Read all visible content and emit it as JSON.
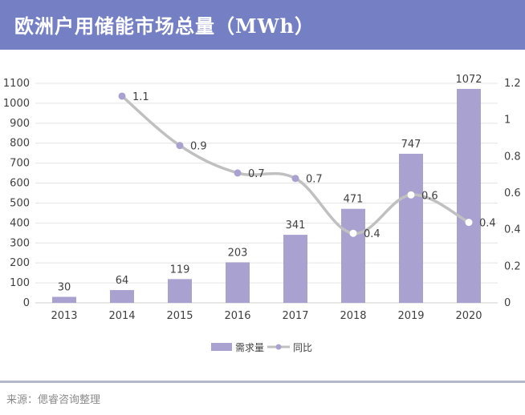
{
  "header": {
    "title": "欧洲户用储能市场总量（MWh）"
  },
  "footer": {
    "source": "来源：偲睿咨询整理"
  },
  "colors": {
    "header_bg": "#7580c4",
    "bar": "#a9a2d1",
    "line": "#c0c0c0",
    "marker": "#a9a2d1",
    "axis_text": "#404040"
  },
  "chart_data": {
    "type": "bar",
    "categories": [
      "2013",
      "2014",
      "2015",
      "2016",
      "2017",
      "2018",
      "2019",
      "2020"
    ],
    "series": [
      {
        "name": "需求量",
        "type": "bar",
        "axis": "left",
        "values": [
          30,
          64,
          119,
          203,
          341,
          471,
          747,
          1072
        ],
        "labels": [
          "30",
          "64",
          "119",
          "203",
          "341",
          "471",
          "747",
          "1072"
        ]
      },
      {
        "name": "同比",
        "type": "line",
        "axis": "right",
        "values": [
          null,
          1.13,
          0.86,
          0.71,
          0.68,
          0.38,
          0.59,
          0.44
        ],
        "labels": [
          null,
          "1.1",
          "0.9",
          "0.7",
          "0.7",
          "0.4",
          "0.6",
          "0.4"
        ]
      }
    ],
    "y_left": {
      "range": [
        0,
        1100
      ],
      "ticks": [
        0,
        100,
        200,
        300,
        400,
        500,
        600,
        700,
        800,
        900,
        1000,
        1100
      ]
    },
    "y_right": {
      "range": [
        0,
        1.2
      ],
      "ticks": [
        "0",
        "0.2",
        "0.4",
        "0.6",
        "0.8",
        "1",
        "1.2"
      ]
    },
    "grid": true,
    "legend_position": "bottom"
  }
}
